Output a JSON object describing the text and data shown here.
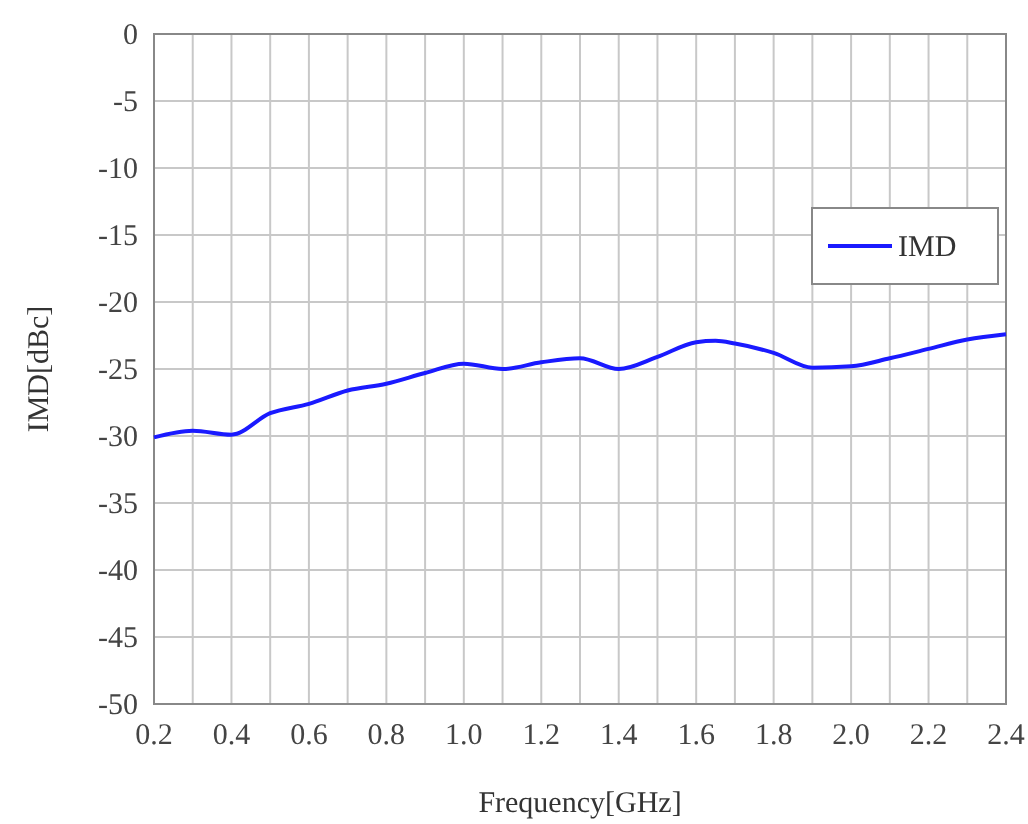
{
  "chart_data": {
    "type": "line",
    "xlabel": "Frequency[GHz]",
    "ylabel": "IMD[dBc]",
    "x": [
      0.2,
      0.3,
      0.4,
      0.5,
      0.6,
      0.7,
      0.8,
      0.9,
      1.0,
      1.1,
      1.2,
      1.3,
      1.4,
      1.5,
      1.6,
      1.65,
      1.7,
      1.8,
      1.9,
      2.0,
      2.1,
      2.2,
      2.3,
      2.4
    ],
    "series": [
      {
        "name": "IMD",
        "color": "#1a1aff",
        "values": [
          -30.1,
          -29.6,
          -29.9,
          -28.3,
          -27.6,
          -26.6,
          -26.1,
          -25.3,
          -24.6,
          -25.0,
          -24.5,
          -24.2,
          -25.0,
          -24.1,
          -23.0,
          -22.9,
          -23.1,
          -23.8,
          -24.9,
          -24.8,
          -24.2,
          -23.5,
          -22.8,
          -22.4
        ]
      }
    ],
    "xlim": [
      0.2,
      2.4
    ],
    "xticks": [
      0.2,
      {
        "value": 0.3,
        "label": null
      },
      0.4,
      {
        "value": 0.5,
        "label": null
      },
      0.6,
      {
        "value": 0.7,
        "label": null
      },
      0.8,
      {
        "value": 0.9,
        "label": null
      },
      {
        "value": 1,
        "label": "1.0"
      },
      {
        "value": 1.1,
        "label": null
      },
      1.2,
      {
        "value": 1.3,
        "label": null
      },
      1.4,
      {
        "value": 1.5,
        "label": null
      },
      1.6,
      {
        "value": 1.7,
        "label": null
      },
      1.8,
      {
        "value": 1.9,
        "label": null
      },
      {
        "value": 2,
        "label": "2.0"
      },
      {
        "value": 2.1,
        "label": null
      },
      2.2,
      {
        "value": 2.3,
        "label": null
      },
      2.4
    ],
    "ylim": [
      -50,
      0
    ],
    "yticks": [
      -50,
      -45,
      -40,
      -35,
      -30,
      -25,
      -20,
      -15,
      -10,
      -5,
      0
    ],
    "grid": true,
    "legend": "right",
    "marker": "none",
    "line_style": "solid"
  }
}
